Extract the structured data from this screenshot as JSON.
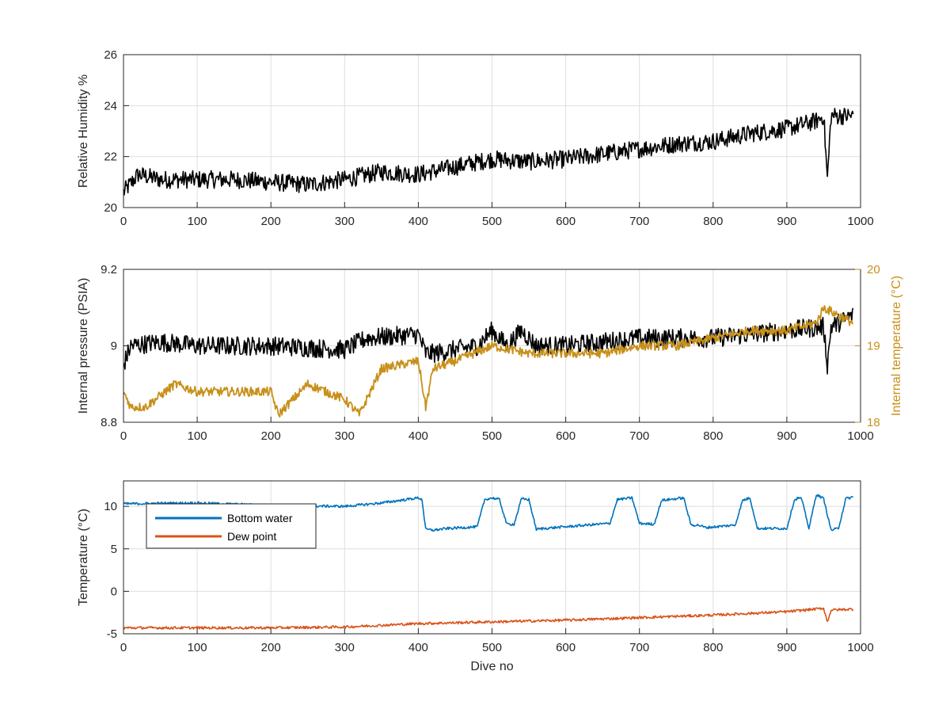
{
  "chart_data": [
    {
      "type": "line",
      "xlabel": "",
      "ylabel": "Relative Humidity %",
      "xlim": [
        0,
        1000
      ],
      "ylim": [
        20,
        26
      ],
      "xticks": [
        0,
        100,
        200,
        300,
        400,
        500,
        600,
        700,
        800,
        900,
        1000
      ],
      "yticks": [
        20,
        22,
        24,
        26
      ],
      "grid": true,
      "series": [
        {
          "color": "#000000",
          "x": [
            0,
            20,
            50,
            100,
            150,
            200,
            250,
            300,
            350,
            400,
            450,
            500,
            550,
            600,
            650,
            700,
            750,
            800,
            850,
            900,
            940,
            950,
            955,
            960,
            990
          ],
          "y": [
            20.6,
            21.3,
            21.1,
            21.1,
            21.1,
            21.0,
            20.9,
            21.1,
            21.4,
            21.3,
            21.6,
            21.9,
            21.8,
            21.9,
            22.1,
            22.3,
            22.5,
            22.6,
            22.9,
            23.1,
            23.4,
            23.6,
            21.1,
            23.6,
            23.6
          ]
        }
      ]
    },
    {
      "type": "line",
      "xlabel": "",
      "ylabel": "Internal pressure (PSIA)",
      "y2label": "Internal temperature (°C)",
      "xlim": [
        0,
        1000
      ],
      "ylim": [
        8.8,
        9.2
      ],
      "y2lim": [
        18,
        20
      ],
      "xticks": [
        0,
        100,
        200,
        300,
        400,
        500,
        600,
        700,
        800,
        900,
        1000
      ],
      "yticks": [
        8.8,
        9,
        9.2
      ],
      "y2ticks": [
        18,
        19,
        20
      ],
      "grid": true,
      "series": [
        {
          "axis": "left",
          "color": "#000000",
          "x": [
            0,
            10,
            50,
            100,
            200,
            300,
            330,
            400,
            410,
            420,
            480,
            500,
            520,
            540,
            560,
            600,
            650,
            700,
            750,
            800,
            850,
            900,
            950,
            955,
            960,
            990
          ],
          "y": [
            8.95,
            9.0,
            9.01,
            9.0,
            9.0,
            8.99,
            9.02,
            9.03,
            8.98,
            8.98,
            9.0,
            9.04,
            9.0,
            9.04,
            9.0,
            9.0,
            9.01,
            9.02,
            9.02,
            9.02,
            9.03,
            9.04,
            9.05,
            8.95,
            9.05,
            9.08
          ]
        },
        {
          "axis": "right",
          "color": "#C8901A",
          "x": [
            0,
            10,
            30,
            70,
            100,
            200,
            210,
            250,
            300,
            320,
            350,
            400,
            410,
            420,
            450,
            500,
            550,
            600,
            650,
            700,
            750,
            800,
            850,
            900,
            940,
            950,
            990
          ],
          "y": [
            18.4,
            18.2,
            18.2,
            18.5,
            18.4,
            18.4,
            18.1,
            18.5,
            18.3,
            18.1,
            18.7,
            18.8,
            18.2,
            18.7,
            18.8,
            19.0,
            18.9,
            18.9,
            18.9,
            19.0,
            19.0,
            19.1,
            19.2,
            19.2,
            19.3,
            19.5,
            19.3
          ]
        }
      ]
    },
    {
      "type": "line",
      "xlabel": "Dive no",
      "ylabel": "Temperature (°C)",
      "xlim": [
        0,
        1000
      ],
      "ylim": [
        -5,
        13
      ],
      "xticks": [
        0,
        100,
        200,
        300,
        400,
        500,
        600,
        700,
        800,
        900,
        1000
      ],
      "yticks": [
        -5,
        0,
        5,
        10
      ],
      "grid": true,
      "legend": "top-left",
      "series": [
        {
          "name": "Bottom water",
          "color": "#0072BD",
          "x": [
            0,
            100,
            200,
            300,
            350,
            400,
            405,
            410,
            420,
            430,
            440,
            480,
            490,
            500,
            510,
            520,
            530,
            540,
            550,
            560,
            570,
            660,
            670,
            690,
            700,
            720,
            730,
            760,
            770,
            780,
            790,
            830,
            840,
            850,
            860,
            900,
            910,
            915,
            920,
            930,
            940,
            950,
            960,
            970,
            980,
            990
          ],
          "y": [
            10.3,
            10.4,
            10.1,
            10.0,
            10.4,
            11.0,
            10.8,
            7.3,
            7.2,
            7.3,
            7.4,
            7.6,
            10.8,
            11.0,
            10.8,
            7.9,
            7.9,
            10.9,
            10.8,
            7.3,
            7.4,
            8.0,
            10.8,
            11.0,
            8.0,
            7.9,
            10.7,
            11.0,
            7.8,
            7.8,
            7.5,
            7.8,
            10.7,
            11.0,
            7.4,
            7.4,
            10.7,
            11.0,
            10.9,
            7.4,
            11.4,
            10.9,
            7.2,
            7.4,
            10.9,
            11.1
          ]
        },
        {
          "name": "Dew point",
          "color": "#D95319",
          "x": [
            0,
            100,
            200,
            300,
            400,
            500,
            600,
            700,
            800,
            900,
            950,
            955,
            960,
            990
          ],
          "y": [
            -4.3,
            -4.3,
            -4.3,
            -4.2,
            -3.8,
            -3.6,
            -3.4,
            -3.1,
            -2.8,
            -2.4,
            -2.0,
            -3.6,
            -2.2,
            -2.1
          ]
        }
      ]
    }
  ]
}
